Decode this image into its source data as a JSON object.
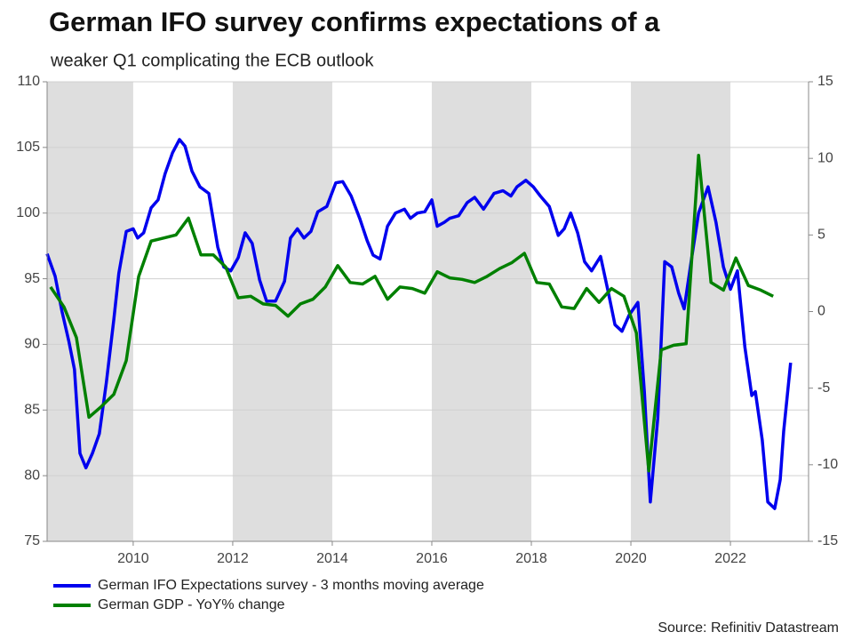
{
  "chart_data": {
    "type": "line",
    "title": "German IFO survey confirms expectations of a",
    "subtitle": "weaker Q1 complicating the ECB outlook",
    "source": "Source: Refinitiv Datastream",
    "xlim": [
      2008.27,
      2023.57
    ],
    "xticks": [
      2010,
      2012,
      2014,
      2016,
      2018,
      2020,
      2022
    ],
    "ylim": [
      75,
      110
    ],
    "yticks": [
      75,
      80,
      85,
      90,
      95,
      100,
      105,
      110
    ],
    "y2lim": [
      -15,
      15
    ],
    "y2ticks": [
      -15,
      -10,
      -5,
      0,
      5,
      10,
      15
    ],
    "grid": true,
    "series": [
      {
        "name": "German IFO Expectations survey - 3 months moving average",
        "color": "#0000ee",
        "x": [
          2008.27,
          2008.43,
          2008.57,
          2008.71,
          2008.82,
          2008.93,
          2009.05,
          2009.18,
          2009.32,
          2009.46,
          2009.61,
          2009.71,
          2009.86,
          2010.0,
          2010.09,
          2010.21,
          2010.36,
          2010.5,
          2010.64,
          2010.79,
          2010.93,
          2011.04,
          2011.18,
          2011.34,
          2011.52,
          2011.7,
          2011.82,
          2011.96,
          2012.11,
          2012.25,
          2012.39,
          2012.54,
          2012.68,
          2012.86,
          2013.04,
          2013.16,
          2013.3,
          2013.43,
          2013.57,
          2013.71,
          2013.89,
          2014.07,
          2014.21,
          2014.38,
          2014.55,
          2014.7,
          2014.82,
          2014.96,
          2015.11,
          2015.27,
          2015.45,
          2015.57,
          2015.71,
          2015.86,
          2016.0,
          2016.11,
          2016.25,
          2016.36,
          2016.54,
          2016.71,
          2016.86,
          2017.04,
          2017.25,
          2017.43,
          2017.59,
          2017.71,
          2017.89,
          2018.04,
          2018.18,
          2018.36,
          2018.54,
          2018.66,
          2018.79,
          2018.93,
          2019.07,
          2019.21,
          2019.39,
          2019.55,
          2019.68,
          2019.82,
          2019.96,
          2020.14,
          2020.27,
          2020.39,
          2020.54,
          2020.68,
          2020.82,
          2020.96,
          2021.07,
          2021.21,
          2021.36,
          2021.55,
          2021.71,
          2021.86,
          2022.0,
          2022.14,
          2022.29,
          2022.43,
          2022.5,
          2022.64,
          2022.75,
          2022.89,
          2023.0,
          2023.07,
          2023.21
        ],
        "values": [
          96.9,
          95.2,
          92.5,
          90.2,
          88.1,
          81.7,
          80.6,
          81.7,
          83.2,
          87.1,
          91.9,
          95.4,
          98.6,
          98.8,
          98.1,
          98.5,
          100.4,
          101.0,
          103.0,
          104.6,
          105.6,
          105.1,
          103.2,
          102.0,
          101.5,
          97.4,
          95.9,
          95.6,
          96.6,
          98.5,
          97.7,
          94.9,
          93.3,
          93.3,
          94.8,
          98.1,
          98.8,
          98.1,
          98.6,
          100.1,
          100.5,
          102.3,
          102.4,
          101.3,
          99.6,
          97.9,
          96.8,
          96.5,
          99.0,
          100.0,
          100.3,
          99.6,
          100.0,
          100.1,
          101.0,
          99.0,
          99.3,
          99.6,
          99.8,
          100.8,
          101.2,
          100.3,
          101.5,
          101.7,
          101.3,
          102.0,
          102.5,
          102.0,
          101.3,
          100.5,
          98.3,
          98.8,
          100.0,
          98.5,
          96.3,
          95.6,
          96.7,
          93.9,
          91.5,
          91.0,
          92.2,
          93.2,
          86.4,
          78.0,
          84.4,
          96.3,
          95.9,
          93.9,
          92.7,
          96.3,
          100.0,
          102.0,
          99.3,
          95.9,
          94.2,
          95.6,
          89.8,
          86.1,
          86.4,
          82.7,
          78.0,
          77.5,
          79.7,
          83.4,
          88.6
        ]
      },
      {
        "name": "German GDP - YoY% change",
        "color": "#008000",
        "axis": "y2",
        "x": [
          2008.34,
          2008.61,
          2008.86,
          2009.11,
          2009.36,
          2009.61,
          2009.86,
          2010.11,
          2010.36,
          2010.61,
          2010.86,
          2011.11,
          2011.36,
          2011.61,
          2011.86,
          2012.11,
          2012.36,
          2012.61,
          2012.86,
          2013.11,
          2013.36,
          2013.61,
          2013.86,
          2014.11,
          2014.36,
          2014.61,
          2014.86,
          2015.11,
          2015.36,
          2015.61,
          2015.86,
          2016.11,
          2016.36,
          2016.61,
          2016.86,
          2017.11,
          2017.36,
          2017.61,
          2017.86,
          2018.11,
          2018.36,
          2018.61,
          2018.86,
          2019.11,
          2019.36,
          2019.61,
          2019.86,
          2020.11,
          2020.36,
          2020.61,
          2020.86,
          2021.11,
          2021.36,
          2021.61,
          2021.86,
          2022.11,
          2022.36,
          2022.61,
          2022.86
        ],
        "values": [
          1.6,
          0.3,
          -1.7,
          -6.9,
          -6.2,
          -5.4,
          -3.2,
          2.3,
          4.6,
          4.8,
          5.0,
          6.1,
          3.7,
          3.7,
          2.9,
          0.9,
          1.0,
          0.5,
          0.4,
          -0.3,
          0.5,
          0.8,
          1.6,
          3.0,
          1.9,
          1.8,
          2.3,
          0.8,
          1.6,
          1.5,
          1.2,
          2.6,
          2.2,
          2.1,
          1.9,
          2.3,
          2.8,
          3.2,
          3.8,
          1.9,
          1.8,
          0.3,
          0.2,
          1.5,
          0.6,
          1.5,
          1.0,
          -1.4,
          -10.4,
          -2.5,
          -2.2,
          -2.1,
          10.2,
          1.9,
          1.4,
          3.5,
          1.7,
          1.4,
          1.0
        ]
      }
    ]
  }
}
